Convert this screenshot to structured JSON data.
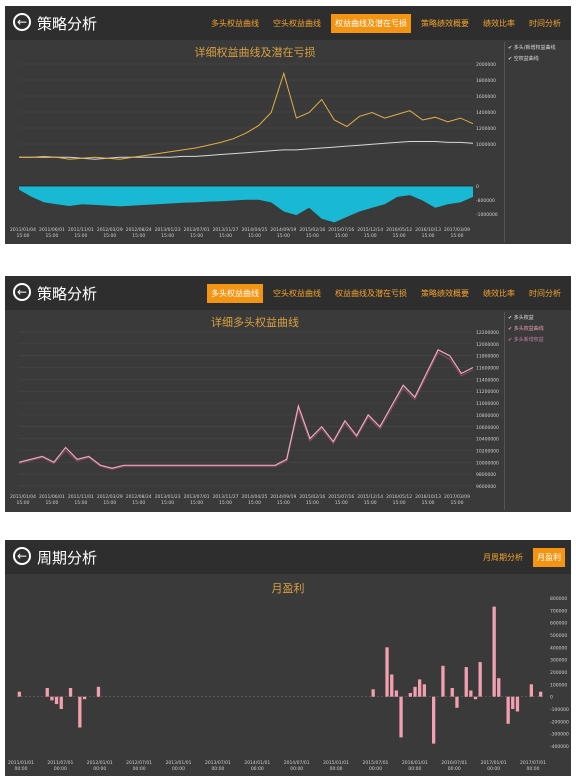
{
  "panel1": {
    "title": "策略分析",
    "tabs": [
      "多头权益曲线",
      "空头权益曲线",
      "权益曲线及潜在亏损",
      "策略绩效概要",
      "绩效比率",
      "时间分析"
    ],
    "active_tab": 2,
    "chart_title": "详细权益曲线及潜在亏损",
    "legend": [
      "多头/新增权益曲线",
      "空权益曲线"
    ],
    "chart_data": {
      "type": "line",
      "ylim": [
        -1600000,
        2000000
      ],
      "y_ticks": [
        "2000000",
        "1800000",
        "1600000",
        "1400000",
        "1200000",
        "1000000",
        "0",
        "-800000",
        "-1000000"
      ],
      "x_ticks": [
        "2011/01/04 15:00",
        "2011/06/01 15:00",
        "2011/11/01 15:00",
        "2012/03/29 15:00",
        "2012/08/24 15:00",
        "2013/01/23 15:00",
        "2013/07/01 15:00",
        "2013/11/27 15:00",
        "2014/04/25 15:00",
        "2014/09/19 15:00",
        "2015/02/16 15:00",
        "2015/07/16 15:00",
        "2015/12/14 15:00",
        "2016/05/12 15:00",
        "2016/10/13 15:00",
        "2017/03/09 15:00"
      ],
      "series_equity": [
        1000000,
        1000000,
        1010000,
        1000000,
        980000,
        990000,
        1000000,
        990000,
        980000,
        1000000,
        1020000,
        1040000,
        1060000,
        1080000,
        1100000,
        1130000,
        1160000,
        1200000,
        1260000,
        1340000,
        1480000,
        1900000,
        1420000,
        1480000,
        1620000,
        1400000,
        1330000,
        1440000,
        1480000,
        1420000,
        1460000,
        1500000,
        1400000,
        1430000,
        1380000,
        1420000,
        1360000
      ],
      "series_short": [
        1000000,
        1000000,
        1000000,
        1000000,
        1000000,
        990000,
        980000,
        990000,
        1000000,
        1000000,
        1000000,
        1000000,
        1000000,
        1010000,
        1010000,
        1020000,
        1030000,
        1040000,
        1050000,
        1060000,
        1070000,
        1080000,
        1080000,
        1090000,
        1100000,
        1110000,
        1120000,
        1130000,
        1140000,
        1150000,
        1160000,
        1170000,
        1170000,
        1170000,
        1160000,
        1160000,
        1150000
      ],
      "series_drawdown": [
        -100000,
        -300000,
        -450000,
        -500000,
        -550000,
        -500000,
        -520000,
        -540000,
        -560000,
        -540000,
        -520000,
        -500000,
        -480000,
        -460000,
        -450000,
        -430000,
        -420000,
        -400000,
        -380000,
        -380000,
        -450000,
        -700000,
        -800000,
        -600000,
        -900000,
        -1000000,
        -850000,
        -700000,
        -600000,
        -500000,
        -300000,
        -250000,
        -400000,
        -600000,
        -500000,
        -450000,
        -300000
      ]
    }
  },
  "panel2": {
    "title": "策略分析",
    "tabs": [
      "多头权益曲线",
      "空头权益曲线",
      "权益曲线及潜在亏损",
      "策略绩效概要",
      "绩效比率",
      "时间分析"
    ],
    "active_tab": 0,
    "chart_title": "详细多头权益曲线",
    "legend": [
      "多头权益",
      "多头权益曲线",
      "多头新增权益"
    ],
    "chart_data": {
      "type": "line",
      "ylim": [
        9600000,
        12200000
      ],
      "y_ticks": [
        "12200000",
        "12000000",
        "11800000",
        "11600000",
        "11400000",
        "11200000",
        "11000000",
        "10800000",
        "10600000",
        "10400000",
        "10200000",
        "10000000",
        "9800000",
        "9600000"
      ],
      "x_ticks": [
        "2011/01/04 15:00",
        "2011/06/01 15:00",
        "2011/11/01 15:00",
        "2012/03/29 15:00",
        "2012/08/24 15:00",
        "2013/01/23 15:00",
        "2013/07/01 15:00",
        "2013/11/27 15:00",
        "2014/04/25 15:00",
        "2014/09/19 15:00",
        "2015/02/16 15:00",
        "2015/07/16 15:00",
        "2015/12/14 15:00",
        "2016/05/12 15:00",
        "2016/10/13 15:00",
        "2017/03/09 15:00"
      ],
      "series_a": [
        10000000,
        10050000,
        10100000,
        10000000,
        10250000,
        10050000,
        10100000,
        9950000,
        9900000,
        9950000,
        9950000,
        9950000,
        9950000,
        9950000,
        9950000,
        9950000,
        9950000,
        9950000,
        9950000,
        9950000,
        9950000,
        9950000,
        9950000,
        10050000,
        10950000,
        10400000,
        10600000,
        10350000,
        10700000,
        10450000,
        10800000,
        10600000,
        10950000,
        11300000,
        11100000,
        11500000,
        11900000,
        11800000,
        11500000,
        11600000
      ],
      "series_b": [
        9980000,
        10030000,
        10080000,
        9980000,
        10200000,
        10020000,
        10080000,
        9930000,
        9880000,
        9930000,
        9930000,
        9930000,
        9930000,
        9930000,
        9930000,
        9930000,
        9930000,
        9930000,
        9930000,
        9930000,
        9930000,
        9930000,
        9930000,
        10020000,
        10880000,
        10360000,
        10560000,
        10320000,
        10660000,
        10420000,
        10760000,
        10560000,
        10900000,
        11250000,
        11060000,
        11450000,
        11850000,
        11740000,
        11460000,
        11560000
      ]
    }
  },
  "panel3": {
    "title": "周期分析",
    "tabs": [
      "月周期分析",
      "月盈利"
    ],
    "active_tab": 1,
    "chart_title": "月盈利",
    "chart_data": {
      "type": "bar",
      "ylim": [
        -400000,
        800000
      ],
      "y_ticks": [
        "800000",
        "700000",
        "600000",
        "500000",
        "400000",
        "300000",
        "200000",
        "100000",
        "0",
        "-100000",
        "-200000",
        "-300000",
        "-400000"
      ],
      "x_ticks": [
        "2011/01/01 00:00",
        "2011/07/01 00:00",
        "2012/01/01 00:00",
        "2012/07/01 00:00",
        "2013/01/01 00:00",
        "2013/07/01 00:00",
        "2014/01/01 00:00",
        "2014/07/01 00:00",
        "2015/01/01 00:00",
        "2015/07/01 00:00",
        "2016/01/01 00:00",
        "2016/07/01 00:00",
        "2017/01/01 00:00",
        "2017/07/01 00:00"
      ],
      "values": [
        40000,
        0,
        0,
        0,
        0,
        0,
        70000,
        -30000,
        -60000,
        -100000,
        0,
        70000,
        0,
        -250000,
        -20000,
        0,
        0,
        80000,
        0,
        0,
        0,
        0,
        0,
        0,
        0,
        0,
        0,
        0,
        0,
        0,
        0,
        0,
        0,
        0,
        0,
        0,
        0,
        0,
        0,
        0,
        0,
        0,
        0,
        0,
        0,
        0,
        0,
        0,
        0,
        0,
        0,
        0,
        0,
        0,
        0,
        0,
        0,
        0,
        0,
        0,
        0,
        0,
        0,
        0,
        0,
        0,
        0,
        0,
        0,
        0,
        0,
        0,
        0,
        0,
        0,
        0,
        60000,
        0,
        0,
        400000,
        180000,
        50000,
        -330000,
        0,
        30000,
        80000,
        140000,
        100000,
        0,
        -380000,
        0,
        250000,
        0,
        70000,
        -90000,
        0,
        240000,
        50000,
        -20000,
        280000,
        0,
        0,
        730000,
        150000,
        0,
        -220000,
        -100000,
        -120000,
        0,
        0,
        100000,
        0,
        40000
      ]
    }
  }
}
